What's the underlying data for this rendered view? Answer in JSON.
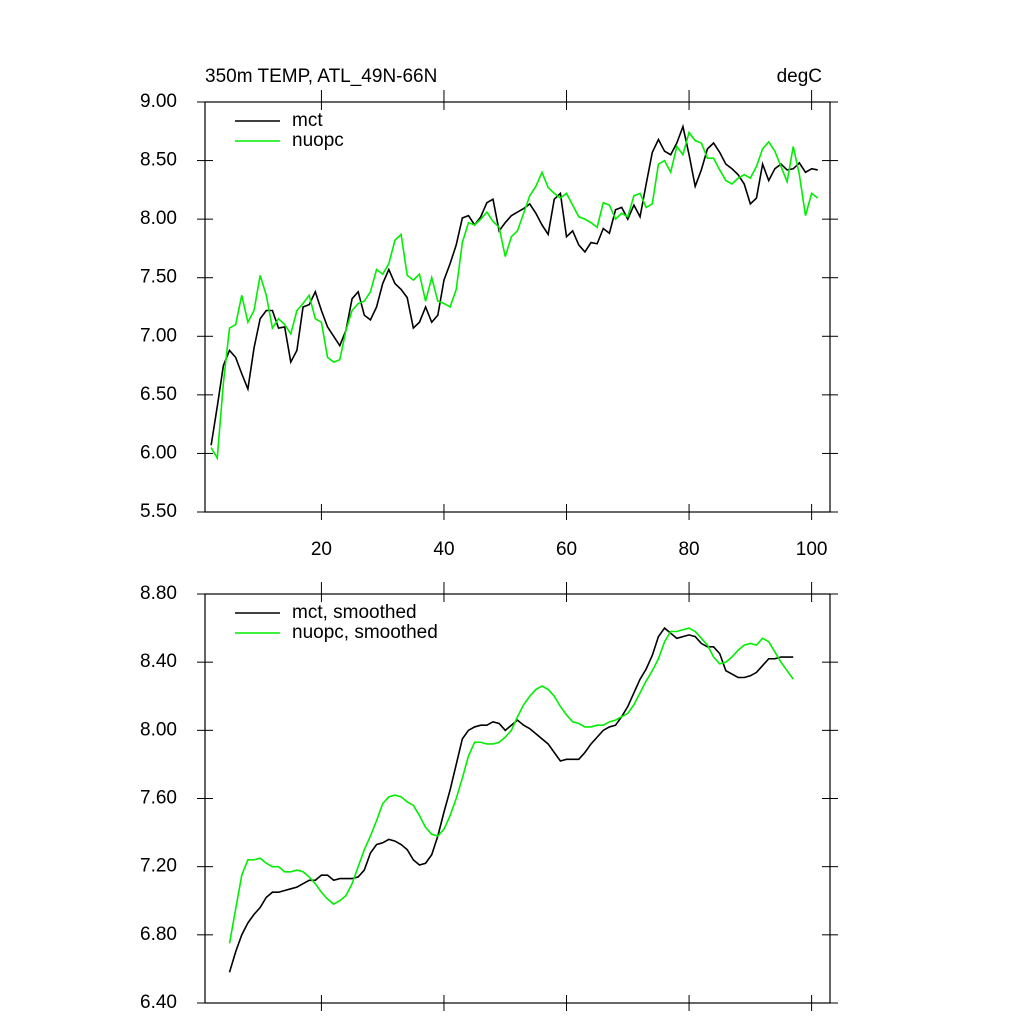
{
  "chart_data": [
    {
      "type": "line",
      "title": "350m TEMP, ATL_49N-66N",
      "units": "degC",
      "legend": "upper left",
      "x": [
        2,
        3,
        4,
        5,
        6,
        7,
        8,
        9,
        10,
        11,
        12,
        13,
        14,
        15,
        16,
        17,
        18,
        19,
        20,
        21,
        22,
        23,
        24,
        25,
        26,
        27,
        28,
        29,
        30,
        31,
        32,
        33,
        34,
        35,
        36,
        37,
        38,
        39,
        40,
        41,
        42,
        43,
        44,
        45,
        46,
        47,
        48,
        49,
        50,
        51,
        52,
        53,
        54,
        55,
        56,
        57,
        58,
        59,
        60,
        61,
        62,
        63,
        64,
        65,
        66,
        67,
        68,
        69,
        70,
        71,
        72,
        73,
        74,
        75,
        76,
        77,
        78,
        79,
        80,
        81,
        82,
        83,
        84,
        85,
        86,
        87,
        88,
        89,
        90,
        91,
        92,
        93,
        94,
        95,
        96,
        97,
        98,
        99,
        100,
        101
      ],
      "series": [
        {
          "name": "mct",
          "color": "#000000",
          "values": [
            6.07,
            6.4,
            6.75,
            6.88,
            6.82,
            6.68,
            6.55,
            6.9,
            7.15,
            7.22,
            7.22,
            7.07,
            7.08,
            6.78,
            6.88,
            7.25,
            7.27,
            7.38,
            7.22,
            7.08,
            7.0,
            6.92,
            7.05,
            7.32,
            7.38,
            7.18,
            7.14,
            7.25,
            7.45,
            7.57,
            7.45,
            7.4,
            7.33,
            7.07,
            7.12,
            7.25,
            7.12,
            7.18,
            7.48,
            7.62,
            7.78,
            8.01,
            8.03,
            7.95,
            8.02,
            8.14,
            8.17,
            7.9,
            7.97,
            8.03,
            8.06,
            8.09,
            8.13,
            8.05,
            7.95,
            7.87,
            8.17,
            8.22,
            7.85,
            7.9,
            7.78,
            7.72,
            7.8,
            7.79,
            7.92,
            7.88,
            8.08,
            8.1,
            8.0,
            8.12,
            8.02,
            8.3,
            8.57,
            8.68,
            8.58,
            8.55,
            8.65,
            8.79,
            8.55,
            8.28,
            8.42,
            8.6,
            8.65,
            8.57,
            8.47,
            8.43,
            8.38,
            8.3,
            8.13,
            8.18,
            8.47,
            8.33,
            8.43,
            8.47,
            8.42,
            8.43,
            8.48,
            8.4,
            8.43,
            8.42
          ]
        },
        {
          "name": "nuopc",
          "color": "#00ee00",
          "values": [
            6.05,
            5.96,
            6.6,
            7.07,
            7.1,
            7.35,
            7.12,
            7.22,
            7.52,
            7.35,
            7.07,
            7.15,
            7.1,
            7.02,
            7.22,
            7.28,
            7.35,
            7.15,
            7.12,
            6.82,
            6.78,
            6.8,
            7.05,
            7.22,
            7.28,
            7.3,
            7.38,
            7.57,
            7.53,
            7.62,
            7.82,
            7.87,
            7.52,
            7.48,
            7.53,
            7.3,
            7.5,
            7.3,
            7.28,
            7.25,
            7.4,
            7.8,
            7.97,
            7.95,
            8.0,
            8.06,
            7.98,
            7.93,
            7.68,
            7.85,
            7.9,
            8.05,
            8.2,
            8.28,
            8.4,
            8.27,
            8.22,
            8.18,
            8.22,
            8.12,
            8.02,
            8.0,
            7.97,
            7.93,
            8.14,
            8.12,
            8.0,
            8.05,
            8.02,
            8.2,
            8.22,
            8.1,
            8.13,
            8.47,
            8.5,
            8.4,
            8.62,
            8.55,
            8.74,
            8.67,
            8.65,
            8.52,
            8.52,
            8.42,
            8.33,
            8.3,
            8.35,
            8.38,
            8.35,
            8.45,
            8.6,
            8.66,
            8.58,
            8.45,
            8.32,
            8.62,
            8.38,
            8.03,
            8.22,
            8.18
          ]
        }
      ],
      "xlim": [
        1,
        103
      ],
      "xticks": [
        20,
        40,
        60,
        80,
        100
      ],
      "ylim": [
        5.5,
        9
      ],
      "yticks": [
        {
          "value": 9,
          "label": "9.00"
        },
        {
          "value": 8.5,
          "label": "8.50"
        },
        {
          "value": 8,
          "label": "8.00"
        },
        {
          "value": 7.5,
          "label": "7.50"
        },
        {
          "value": 7,
          "label": "7.00"
        },
        {
          "value": 6.5,
          "label": "6.50"
        },
        {
          "value": 6,
          "label": "6.00"
        },
        {
          "value": 5.5,
          "label": "5.50"
        }
      ]
    },
    {
      "type": "line",
      "legend": "upper left",
      "x": [
        5,
        6,
        7,
        8,
        9,
        10,
        11,
        12,
        13,
        14,
        15,
        16,
        17,
        18,
        19,
        20,
        21,
        22,
        23,
        24,
        25,
        26,
        27,
        28,
        29,
        30,
        31,
        32,
        33,
        34,
        35,
        36,
        37,
        38,
        39,
        40,
        41,
        42,
        43,
        44,
        45,
        46,
        47,
        48,
        49,
        50,
        51,
        52,
        53,
        54,
        55,
        56,
        57,
        58,
        59,
        60,
        61,
        62,
        63,
        64,
        65,
        66,
        67,
        68,
        69,
        70,
        71,
        72,
        73,
        74,
        75,
        76,
        77,
        78,
        79,
        80,
        81,
        82,
        83,
        84,
        85,
        86,
        87,
        88,
        89,
        90,
        91,
        92,
        93,
        94,
        95,
        96,
        97
      ],
      "series": [
        {
          "name": "mct, smoothed",
          "color": "#000000",
          "values": [
            6.58,
            6.7,
            6.8,
            6.87,
            6.92,
            6.96,
            7.02,
            7.05,
            7.05,
            7.06,
            7.07,
            7.08,
            7.1,
            7.12,
            7.12,
            7.15,
            7.15,
            7.12,
            7.13,
            7.13,
            7.13,
            7.14,
            7.18,
            7.28,
            7.33,
            7.34,
            7.36,
            7.35,
            7.33,
            7.3,
            7.24,
            7.21,
            7.22,
            7.27,
            7.38,
            7.52,
            7.65,
            7.8,
            7.95,
            8.0,
            8.02,
            8.03,
            8.03,
            8.05,
            8.04,
            8.0,
            8.03,
            8.06,
            8.03,
            8.01,
            7.98,
            7.95,
            7.92,
            7.87,
            7.82,
            7.83,
            7.83,
            7.83,
            7.87,
            7.92,
            7.96,
            8.0,
            8.02,
            8.03,
            8.08,
            8.14,
            8.22,
            8.3,
            8.36,
            8.44,
            8.55,
            8.6,
            8.57,
            8.54,
            8.55,
            8.56,
            8.55,
            8.51,
            8.49,
            8.49,
            8.45,
            8.35,
            8.33,
            8.31,
            8.31,
            8.32,
            8.34,
            8.38,
            8.42,
            8.42,
            8.43,
            8.43,
            8.43
          ]
        },
        {
          "name": "nuopc, smoothed",
          "color": "#00ee00",
          "values": [
            6.75,
            6.95,
            7.15,
            7.24,
            7.24,
            7.25,
            7.22,
            7.2,
            7.2,
            7.17,
            7.17,
            7.18,
            7.17,
            7.14,
            7.1,
            7.05,
            7.01,
            6.98,
            7.0,
            7.03,
            7.1,
            7.2,
            7.3,
            7.38,
            7.47,
            7.57,
            7.61,
            7.62,
            7.61,
            7.58,
            7.56,
            7.5,
            7.43,
            7.39,
            7.38,
            7.42,
            7.5,
            7.6,
            7.72,
            7.85,
            7.93,
            7.93,
            7.92,
            7.92,
            7.93,
            7.96,
            8.0,
            8.08,
            8.15,
            8.2,
            8.24,
            8.26,
            8.24,
            8.2,
            8.14,
            8.09,
            8.05,
            8.04,
            8.02,
            8.02,
            8.03,
            8.03,
            8.05,
            8.06,
            8.08,
            8.1,
            8.15,
            8.22,
            8.29,
            8.35,
            8.42,
            8.52,
            8.58,
            8.58,
            8.59,
            8.6,
            8.58,
            8.54,
            8.5,
            8.43,
            8.39,
            8.4,
            8.43,
            8.47,
            8.5,
            8.51,
            8.5,
            8.54,
            8.52,
            8.46,
            8.4,
            8.35,
            8.3
          ]
        }
      ],
      "xlim": [
        1,
        103
      ],
      "xticks": [
        20,
        40,
        60,
        80,
        100
      ],
      "ylim": [
        6.4,
        8.8
      ],
      "yticks": [
        {
          "value": 8.8,
          "label": "8.80"
        },
        {
          "value": 8.4,
          "label": "8.40"
        },
        {
          "value": 8,
          "label": "8.00"
        },
        {
          "value": 7.6,
          "label": "7.60"
        },
        {
          "value": 7.2,
          "label": "7.20"
        },
        {
          "value": 6.8,
          "label": "6.80"
        },
        {
          "value": 6.4,
          "label": "6.40"
        }
      ]
    }
  ]
}
